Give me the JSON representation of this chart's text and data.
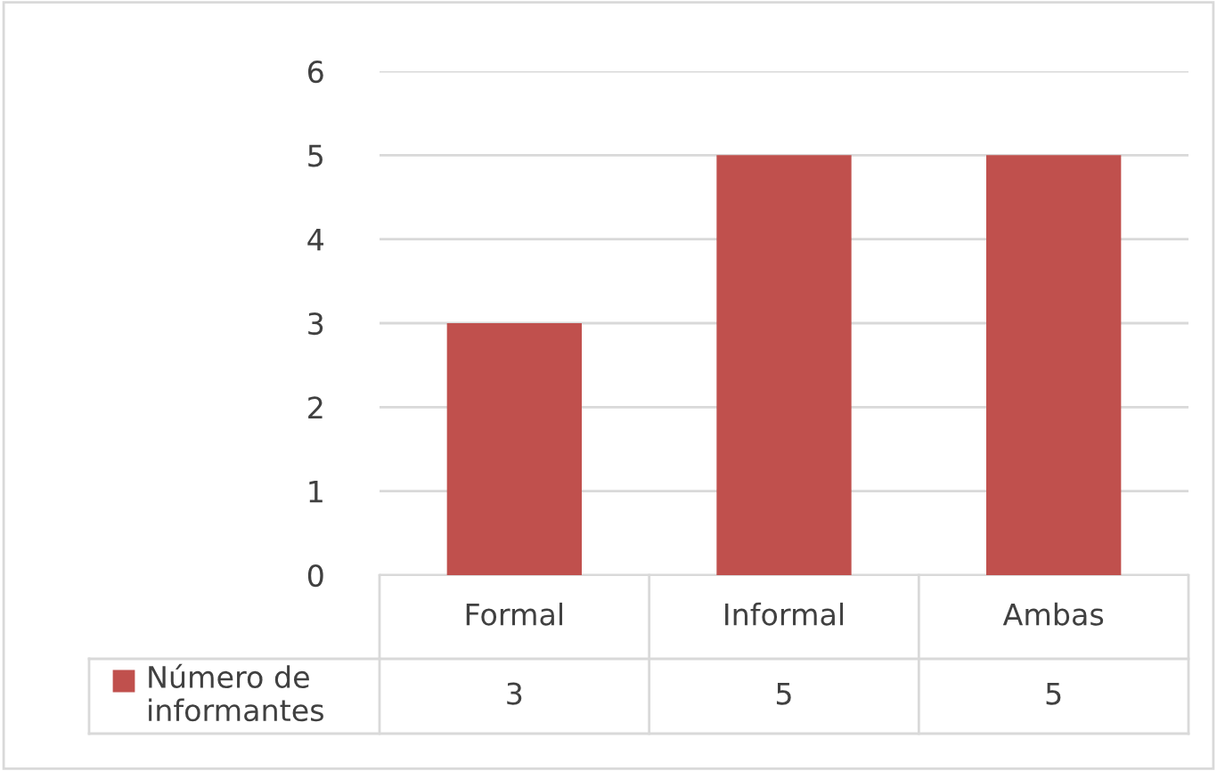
{
  "chart_data": {
    "type": "bar",
    "categories": [
      "Formal",
      "Informal",
      "Ambas"
    ],
    "series": [
      {
        "name": "Número de informantes",
        "color": "#c0504d",
        "values": [
          3,
          5,
          5
        ]
      }
    ],
    "ylim": [
      0,
      6
    ],
    "yticks": [
      0,
      1,
      2,
      3,
      4,
      5,
      6
    ],
    "grid": "y",
    "legend": "bottom",
    "data_labels": true
  }
}
